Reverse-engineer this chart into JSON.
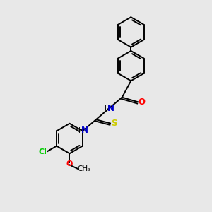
{
  "bg_color": "#e8e8e8",
  "atom_colors": {
    "C": "#000000",
    "N": "#0000cc",
    "O": "#ff0000",
    "S": "#cccc00",
    "Cl": "#00cc00",
    "H": "#000000"
  },
  "bond_color": "#000000",
  "fig_size": [
    3.0,
    3.0
  ],
  "dpi": 100,
  "lw": 1.4,
  "ring_r": 0.72
}
